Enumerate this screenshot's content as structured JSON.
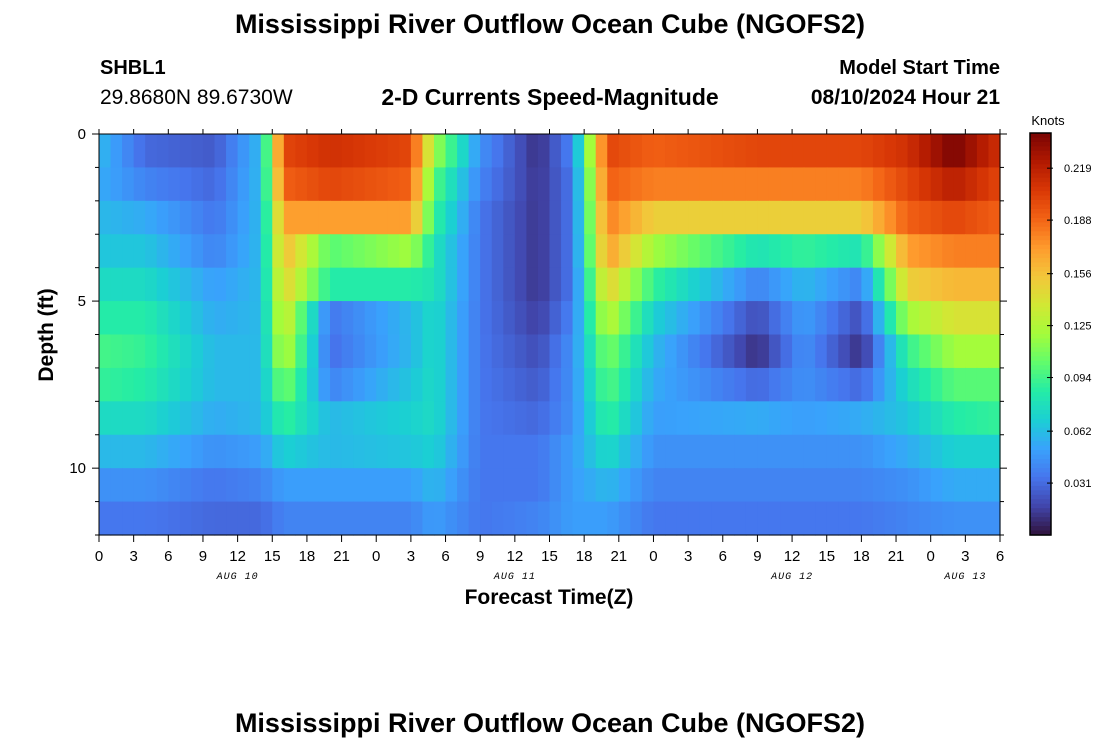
{
  "header": {
    "title": "Mississippi River Outflow Ocean Cube (NGOFS2)",
    "title_repeat": "Mississippi River Outflow Ocean Cube (NGOFS2)",
    "station_id": "SHBL1",
    "station_location": "29.8680N  89.6730W",
    "subtitle": "2-D Currents Speed-Magnitude",
    "model_start_label": "Model Start Time",
    "model_start_time": "08/10/2024 Hour 21"
  },
  "chart_data": {
    "type": "heatmap",
    "title": "2-D Currents Speed-Magnitude",
    "xlabel": "Forecast Time(Z)",
    "ylabel": "Depth (ft)",
    "colorbar_label": "Knots",
    "x_hours_range": [
      0,
      78
    ],
    "ylim": [
      0,
      12
    ],
    "y_ticks": [
      0,
      5,
      10
    ],
    "x_tick_labels": [
      "0",
      "3",
      "6",
      "9",
      "12",
      "15",
      "18",
      "21",
      "0",
      "3",
      "6",
      "9",
      "12",
      "15",
      "18",
      "21",
      "0",
      "3",
      "6",
      "9",
      "12",
      "15",
      "18",
      "21",
      "0",
      "3",
      "6"
    ],
    "date_labels": [
      {
        "hour": 12,
        "label": "AUG 10"
      },
      {
        "hour": 36,
        "label": "AUG 11"
      },
      {
        "hour": 60,
        "label": "AUG 12"
      },
      {
        "hour": 75,
        "label": "AUG 13"
      }
    ],
    "colorbar": {
      "min": 0.0,
      "max": 0.24,
      "ticks": [
        0.031,
        0.062,
        0.094,
        0.125,
        0.156,
        0.188,
        0.219
      ],
      "colors": [
        "#30123b",
        "#4145ab",
        "#4675ed",
        "#39a2fc",
        "#1bcfd4",
        "#24eca6",
        "#61fc6c",
        "#a4fc3b",
        "#d1e834",
        "#f3c63a",
        "#fe9b2d",
        "#f36315",
        "#d93806",
        "#b11901",
        "#7a0403"
      ]
    },
    "depth_levels": [
      0.5,
      1.5,
      2.5,
      3.5,
      4.5,
      5.5,
      6.5,
      7.5,
      8.5,
      9.5,
      10.5,
      11.5
    ],
    "keyframes": [
      {
        "hour": 0,
        "values": [
          0.06,
          0.055,
          0.06,
          0.065,
          0.075,
          0.085,
          0.095,
          0.09,
          0.075,
          0.06,
          0.045,
          0.035
        ]
      },
      {
        "hour": 4,
        "values": [
          0.03,
          0.04,
          0.055,
          0.065,
          0.075,
          0.085,
          0.09,
          0.085,
          0.075,
          0.06,
          0.045,
          0.035
        ]
      },
      {
        "hour": 10,
        "values": [
          0.025,
          0.03,
          0.035,
          0.04,
          0.05,
          0.055,
          0.06,
          0.06,
          0.055,
          0.045,
          0.035,
          0.03
        ]
      },
      {
        "hour": 14,
        "values": [
          0.06,
          0.06,
          0.06,
          0.06,
          0.06,
          0.06,
          0.06,
          0.06,
          0.06,
          0.05,
          0.04,
          0.03
        ]
      },
      {
        "hour": 16,
        "values": [
          0.2,
          0.19,
          0.17,
          0.16,
          0.15,
          0.14,
          0.13,
          0.11,
          0.09,
          0.07,
          0.05,
          0.04
        ]
      },
      {
        "hour": 20,
        "values": [
          0.21,
          0.2,
          0.17,
          0.1,
          0.085,
          0.035,
          0.032,
          0.04,
          0.06,
          0.06,
          0.05,
          0.04
        ]
      },
      {
        "hour": 27,
        "values": [
          0.2,
          0.19,
          0.17,
          0.12,
          0.085,
          0.06,
          0.06,
          0.065,
          0.07,
          0.065,
          0.05,
          0.04
        ]
      },
      {
        "hour": 29,
        "values": [
          0.12,
          0.1,
          0.09,
          0.08,
          0.08,
          0.075,
          0.075,
          0.075,
          0.075,
          0.07,
          0.06,
          0.05
        ]
      },
      {
        "hour": 33,
        "values": [
          0.045,
          0.04,
          0.035,
          0.035,
          0.035,
          0.035,
          0.035,
          0.035,
          0.035,
          0.035,
          0.035,
          0.035
        ]
      },
      {
        "hour": 38,
        "values": [
          0.01,
          0.012,
          0.012,
          0.012,
          0.012,
          0.015,
          0.02,
          0.025,
          0.03,
          0.035,
          0.035,
          0.04
        ]
      },
      {
        "hour": 41,
        "values": [
          0.04,
          0.035,
          0.035,
          0.035,
          0.035,
          0.04,
          0.045,
          0.045,
          0.045,
          0.05,
          0.05,
          0.05
        ]
      },
      {
        "hour": 44,
        "values": [
          0.2,
          0.19,
          0.18,
          0.17,
          0.15,
          0.13,
          0.11,
          0.1,
          0.09,
          0.075,
          0.06,
          0.05
        ]
      },
      {
        "hour": 48,
        "values": [
          0.19,
          0.18,
          0.15,
          0.12,
          0.09,
          0.07,
          0.06,
          0.055,
          0.05,
          0.045,
          0.04,
          0.035
        ]
      },
      {
        "hour": 57,
        "values": [
          0.2,
          0.18,
          0.15,
          0.08,
          0.04,
          0.02,
          0.01,
          0.03,
          0.055,
          0.045,
          0.04,
          0.035
        ]
      },
      {
        "hour": 61,
        "values": [
          0.2,
          0.18,
          0.15,
          0.09,
          0.06,
          0.05,
          0.045,
          0.045,
          0.05,
          0.045,
          0.04,
          0.035
        ]
      },
      {
        "hour": 66,
        "values": [
          0.2,
          0.18,
          0.15,
          0.08,
          0.04,
          0.02,
          0.01,
          0.03,
          0.055,
          0.045,
          0.04,
          0.035
        ]
      },
      {
        "hour": 70,
        "values": [
          0.21,
          0.2,
          0.19,
          0.17,
          0.15,
          0.12,
          0.09,
          0.075,
          0.065,
          0.055,
          0.045,
          0.04
        ]
      },
      {
        "hour": 74,
        "values": [
          0.24,
          0.22,
          0.2,
          0.18,
          0.16,
          0.14,
          0.12,
          0.1,
          0.085,
          0.07,
          0.055,
          0.045
        ]
      },
      {
        "hour": 78,
        "values": [
          0.21,
          0.2,
          0.19,
          0.18,
          0.16,
          0.14,
          0.12,
          0.1,
          0.09,
          0.07,
          0.055,
          0.045
        ]
      }
    ]
  }
}
